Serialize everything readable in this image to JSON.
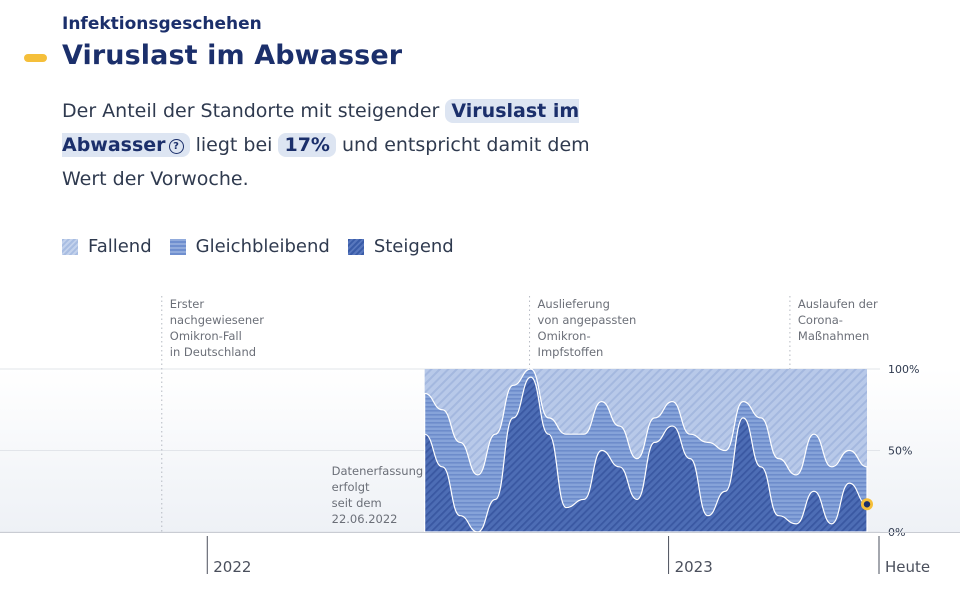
{
  "section": {
    "eyebrow": "Infektionsgeschehen",
    "title": "Viruslast im Abwasser"
  },
  "lead": {
    "part1": "Der Anteil der Standorte mit steigender",
    "chip_metric": "Viruslast im Abwasser",
    "info_icon": "info-circle-icon",
    "part2": "liegt bei",
    "chip_value": "17%",
    "part3": "und entspricht damit dem Wert der Vorwoche."
  },
  "legend": {
    "items": [
      {
        "label": "Fallend",
        "color": "#b3c6e8"
      },
      {
        "label": "Gleichbleibend",
        "color": "#7f9ed6"
      },
      {
        "label": "Steigend",
        "color": "#4466b0"
      }
    ]
  },
  "chart_data": {
    "type": "area",
    "stacked": true,
    "normalized_percent": true,
    "x": [
      "2022-06-22",
      "2022-07-06",
      "2022-07-20",
      "2022-08-03",
      "2022-08-17",
      "2022-08-31",
      "2022-09-14",
      "2022-09-28",
      "2022-10-12",
      "2022-10-26",
      "2022-11-09",
      "2022-11-23",
      "2022-12-07",
      "2022-12-21",
      "2023-01-04",
      "2023-01-18",
      "2023-02-01",
      "2023-02-15",
      "2023-03-01",
      "2023-03-15",
      "2023-03-29",
      "2023-04-12",
      "2023-04-26",
      "2023-05-10",
      "2023-05-24",
      "2023-06-07"
    ],
    "series": [
      {
        "name": "Steigend",
        "color": "#4466b0",
        "values": [
          60,
          40,
          10,
          0,
          20,
          70,
          95,
          60,
          15,
          20,
          50,
          40,
          20,
          55,
          65,
          45,
          10,
          25,
          70,
          40,
          10,
          5,
          25,
          5,
          30,
          17
        ]
      },
      {
        "name": "Gleichbleibend",
        "color": "#7f9ed6",
        "values": [
          25,
          35,
          45,
          35,
          40,
          20,
          5,
          10,
          45,
          40,
          30,
          25,
          25,
          15,
          15,
          15,
          45,
          25,
          10,
          30,
          35,
          30,
          35,
          35,
          20,
          23
        ]
      },
      {
        "name": "Fallend",
        "color": "#b3c6e8",
        "values": [
          15,
          25,
          45,
          65,
          40,
          10,
          0,
          30,
          40,
          40,
          20,
          35,
          55,
          30,
          20,
          40,
          45,
          50,
          20,
          30,
          55,
          65,
          40,
          60,
          50,
          60
        ]
      }
    ],
    "xlim": [
      "2021-07-21",
      "2023-06-07"
    ],
    "ylim": [
      0,
      100
    ],
    "y_ticks": [
      "0%",
      "50%",
      "100%"
    ],
    "x_ticks": [
      {
        "date": "2022-01-01",
        "label": "2022"
      },
      {
        "date": "2023-01-01",
        "label": "2023"
      },
      {
        "date": "2023-06-07",
        "label": "Heute"
      }
    ],
    "current_point": {
      "date": "2023-06-07",
      "value": 17
    },
    "annotations": [
      {
        "date": "2021-11-26",
        "lines": [
          "Erster",
          "nachgewiesener",
          "Omikron-Fall",
          "in Deutschland"
        ]
      },
      {
        "date": "2022-09-13",
        "lines": [
          "Auslieferung",
          "von angepassten",
          "Omikron-",
          "Impfstoffen"
        ]
      },
      {
        "date": "2023-04-07",
        "lines": [
          "Auslaufen der",
          "Corona-",
          "Maßnahmen"
        ]
      }
    ],
    "data_start_note": {
      "lines": [
        "Datenerfassung",
        "erfolgt",
        "seit dem",
        "22.06.2022"
      ]
    },
    "grid": true,
    "legend_position": "top-left"
  }
}
